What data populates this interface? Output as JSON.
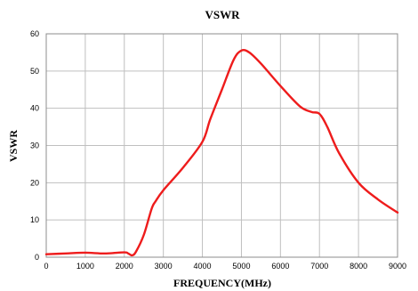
{
  "chart_data": {
    "type": "line",
    "title": "VSWR",
    "xlabel": "FREQUENCY(MHz)",
    "ylabel": "VSWR",
    "xlim": [
      0,
      9000
    ],
    "ylim": [
      0,
      60
    ],
    "x_ticks": [
      0,
      1000,
      2000,
      3000,
      4000,
      5000,
      6000,
      7000,
      8000,
      9000
    ],
    "y_ticks": [
      0,
      10,
      20,
      30,
      40,
      50,
      60
    ],
    "grid": true,
    "legend": "none",
    "series": [
      {
        "name": "",
        "color": "#ee1c1c",
        "x": [
          0,
          500,
          1000,
          1500,
          2000,
          2100,
          2200,
          2300,
          2500,
          2700,
          2800,
          3000,
          3500,
          4000,
          4200,
          4500,
          4800,
          5000,
          5200,
          5500,
          6000,
          6500,
          6800,
          7000,
          7200,
          7500,
          8000,
          8500,
          9000
        ],
        "y": [
          0.8,
          1.0,
          1.2,
          1.0,
          1.3,
          1.0,
          0.5,
          1.5,
          6.0,
          13.0,
          15.0,
          18.0,
          24.0,
          31.0,
          37.0,
          45.0,
          53.0,
          55.5,
          55.0,
          52.0,
          46.0,
          40.5,
          39.0,
          38.5,
          35.0,
          28.0,
          20.0,
          15.5,
          12.0
        ]
      }
    ]
  }
}
